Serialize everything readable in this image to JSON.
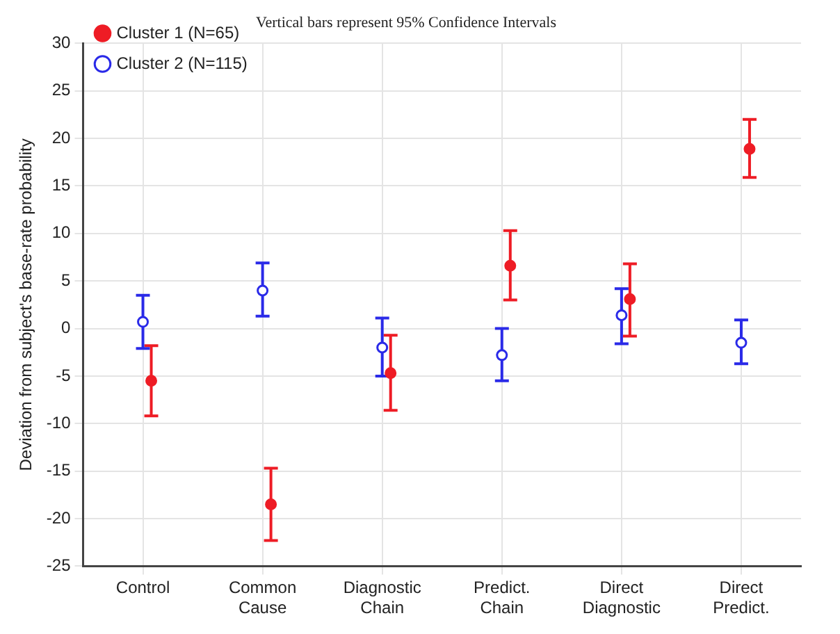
{
  "chart_data": {
    "type": "scatter",
    "title": "Vertical bars represent 95% Confidence Intervals",
    "ylabel": "Deviation from subject's base-rate probability",
    "categories": [
      "Control",
      "Common Cause",
      "Diagnostic Chain",
      "Predict. Chain",
      "Direct Diagnostic",
      "Direct Predict."
    ],
    "series": [
      {
        "name": "Cluster 1 (N=65)",
        "color": "#ee1c25",
        "values": [
          -5.5,
          -18.5,
          -4.7,
          6.6,
          3.1,
          18.9
        ],
        "errors": [
          [
            -9.2,
            -1.8
          ],
          [
            -22.3,
            -14.7
          ],
          [
            -8.6,
            -0.7
          ],
          [
            3.0,
            10.3
          ],
          [
            -0.8,
            6.8
          ],
          [
            15.9,
            22.0
          ]
        ]
      },
      {
        "name": "Cluster 2 (N=115)",
        "color": "#2a2ae8",
        "values": [
          0.7,
          4.0,
          -2.0,
          -2.8,
          1.4,
          -1.5
        ],
        "errors": [
          [
            -2.1,
            3.5
          ],
          [
            1.3,
            6.9
          ],
          [
            -5.0,
            1.1
          ],
          [
            -5.5,
            0.0
          ],
          [
            -1.6,
            4.2
          ],
          [
            -3.7,
            0.9
          ]
        ]
      }
    ],
    "ylim": [
      -25,
      30
    ],
    "yticks": [
      -25,
      -20,
      -15,
      -10,
      -5,
      0,
      5,
      10,
      15,
      20,
      25,
      30
    ],
    "grid": true,
    "legend": "top left",
    "marker": "circle"
  }
}
